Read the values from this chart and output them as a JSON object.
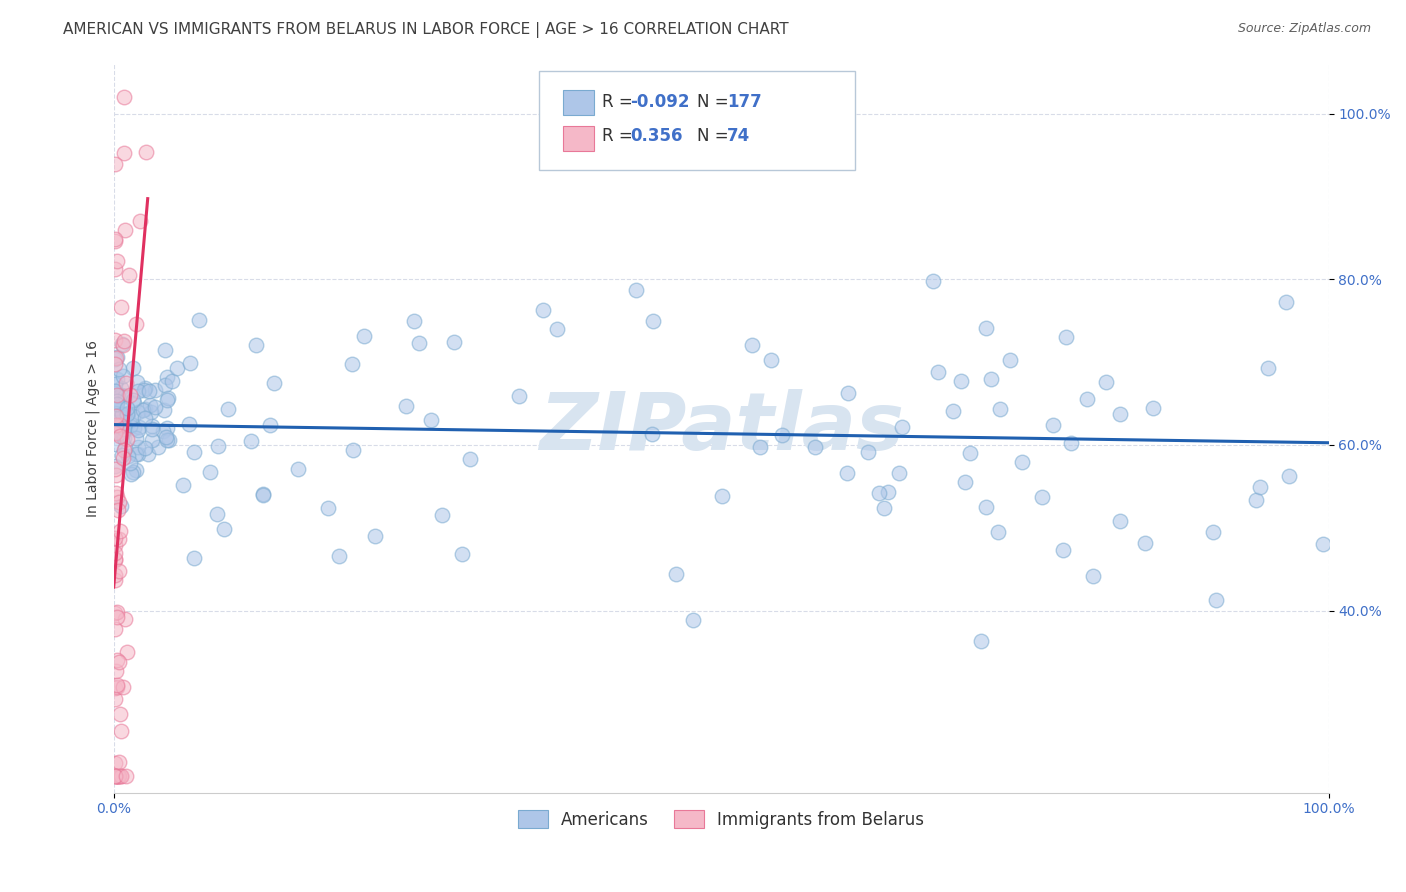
{
  "title": "AMERICAN VS IMMIGRANTS FROM BELARUS IN LABOR FORCE | AGE > 16 CORRELATION CHART",
  "source": "Source: ZipAtlas.com",
  "ylabel": "In Labor Force | Age > 16",
  "xlim": [
    0.0,
    1.0
  ],
  "ylim": [
    0.18,
    1.06
  ],
  "ytick_positions": [
    0.4,
    0.6,
    0.8,
    1.0
  ],
  "ytick_labels": [
    "40.0%",
    "60.0%",
    "80.0%",
    "100.0%"
  ],
  "xtick_positions": [
    0.0,
    1.0
  ],
  "xtick_labels": [
    "0.0%",
    "100.0%"
  ],
  "blue_R": -0.092,
  "blue_N": 177,
  "pink_R": 0.356,
  "pink_N": 74,
  "blue_color": "#aec6e8",
  "pink_color": "#f5b8c8",
  "blue_edge_color": "#7aaad0",
  "pink_edge_color": "#e87898",
  "blue_line_color": "#2060b0",
  "pink_line_color": "#e03060",
  "watermark_color": "#d8e4f0",
  "title_color": "#404040",
  "source_color": "#606060",
  "tick_color": "#4070c8",
  "ylabel_color": "#404040",
  "grid_color": "#d8dce8",
  "title_fontsize": 11,
  "source_fontsize": 9,
  "tick_fontsize": 10,
  "ylabel_fontsize": 10,
  "legend_fontsize": 12,
  "watermark_fontsize": 58,
  "dot_size": 110,
  "dot_alpha": 0.55,
  "dot_linewidth": 1.0
}
